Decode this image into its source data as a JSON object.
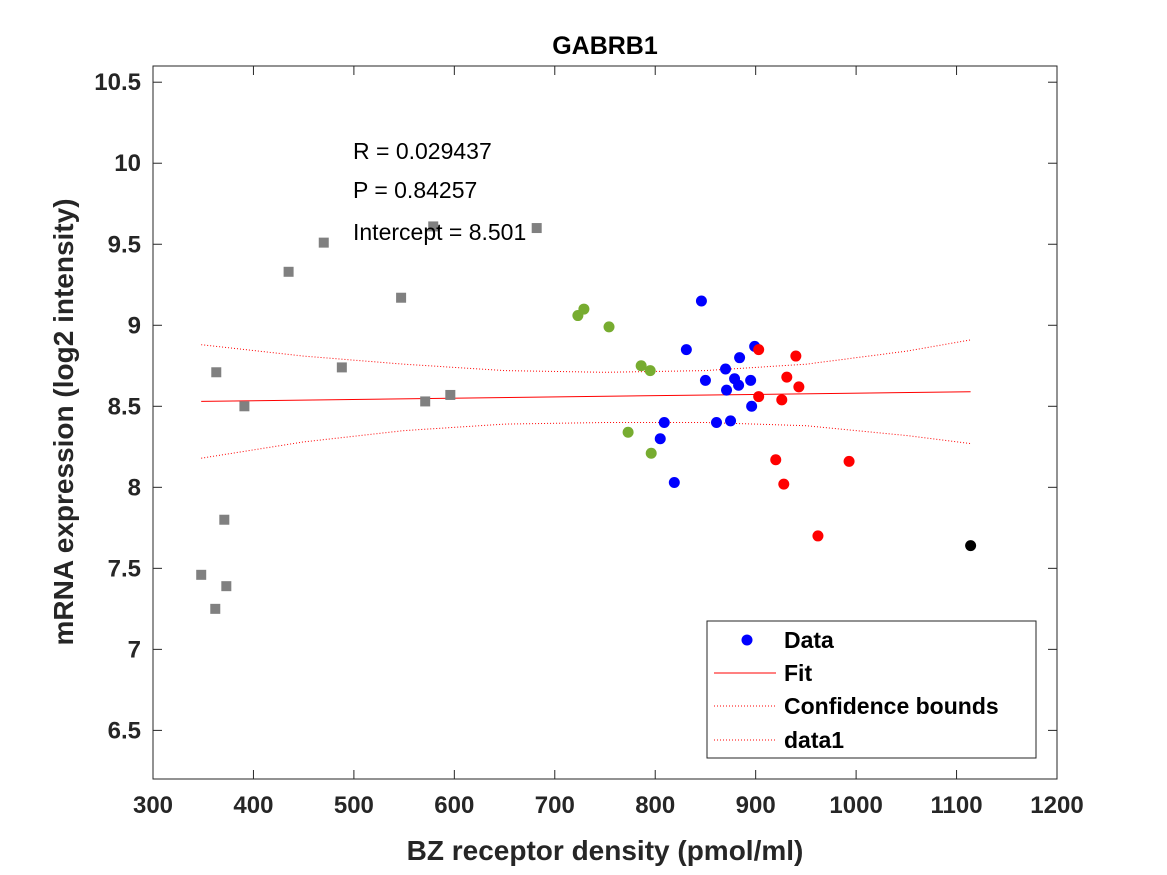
{
  "chart_data": {
    "type": "scatter",
    "title": "GABRB1",
    "xlabel": "BZ receptor density (pmol/ml)",
    "ylabel": "mRNA expression (log2 intensity)",
    "xlim": [
      300,
      1200
    ],
    "ylim": [
      6.2,
      10.6
    ],
    "xticks": [
      300,
      400,
      500,
      600,
      700,
      800,
      900,
      1000,
      1100,
      1200
    ],
    "yticks": [
      6.5,
      7,
      7.5,
      8,
      8.5,
      9,
      9.5,
      10,
      10.5
    ],
    "xtick_labels": [
      "300",
      "400",
      "500",
      "600",
      "700",
      "800",
      "900",
      "1000",
      "1100",
      "1200"
    ],
    "ytick_labels": [
      "6.5",
      "7",
      "7.5",
      "8",
      "8.5",
      "9",
      "9.5",
      "10",
      "10.5"
    ],
    "grid": false,
    "legend_position": "bottom-right",
    "annotations": [
      "R = 0.029437",
      "P = 0.84257",
      "Intercept = 8.501"
    ],
    "legend": [
      {
        "label": "Data",
        "style": "marker",
        "color": "#0000ff"
      },
      {
        "label": "Fit",
        "style": "solid",
        "color": "#ff0000"
      },
      {
        "label": "Confidence bounds",
        "style": "dotted",
        "color": "#ff0000"
      },
      {
        "label": "data1",
        "style": "dotted",
        "color": "#ff0000"
      }
    ],
    "fit": {
      "x": [
        348,
        1114
      ],
      "y": [
        8.53,
        8.59
      ],
      "color": "#ff0000"
    },
    "confidence_upper": {
      "x": [
        348,
        450,
        550,
        650,
        750,
        850,
        950,
        1050,
        1114
      ],
      "y": [
        8.88,
        8.81,
        8.76,
        8.72,
        8.71,
        8.72,
        8.76,
        8.84,
        8.91
      ],
      "color": "#ff0000"
    },
    "confidence_lower": {
      "x": [
        348,
        450,
        550,
        650,
        750,
        850,
        950,
        1050,
        1114
      ],
      "y": [
        8.18,
        8.28,
        8.35,
        8.39,
        8.4,
        8.4,
        8.38,
        8.32,
        8.27
      ],
      "color": "#ff0000"
    },
    "series": [
      {
        "marker": "square",
        "color": "#808080",
        "x": [
          348,
          362,
          363,
          371,
          373,
          391,
          435,
          470,
          488,
          547,
          571,
          579,
          596,
          682
        ],
        "y": [
          7.46,
          7.25,
          8.71,
          7.8,
          7.39,
          8.5,
          9.33,
          9.51,
          8.74,
          9.17,
          8.53,
          9.61,
          8.57,
          9.6
        ]
      },
      {
        "marker": "circle",
        "color": "#77ac30",
        "x": [
          723,
          729,
          754,
          773,
          786,
          795,
          796
        ],
        "y": [
          9.06,
          9.1,
          8.99,
          8.34,
          8.75,
          8.72,
          8.21
        ]
      },
      {
        "marker": "circle",
        "color": "#0000ff",
        "x": [
          805,
          809,
          819,
          831,
          846,
          850,
          861,
          870,
          871,
          875,
          879,
          883,
          884,
          895,
          896,
          899
        ],
        "y": [
          8.3,
          8.4,
          8.03,
          8.85,
          9.15,
          8.66,
          8.4,
          8.73,
          8.6,
          8.41,
          8.67,
          8.63,
          8.8,
          8.66,
          8.5,
          8.87
        ]
      },
      {
        "marker": "circle",
        "color": "#ff0000",
        "x": [
          903,
          903,
          920,
          926,
          928,
          931,
          940,
          943,
          962,
          993
        ],
        "y": [
          8.85,
          8.56,
          8.17,
          8.54,
          8.02,
          8.68,
          8.81,
          8.62,
          7.7,
          8.16
        ]
      },
      {
        "marker": "circle",
        "color": "#000000",
        "x": [
          1114
        ],
        "y": [
          7.64
        ]
      }
    ]
  }
}
